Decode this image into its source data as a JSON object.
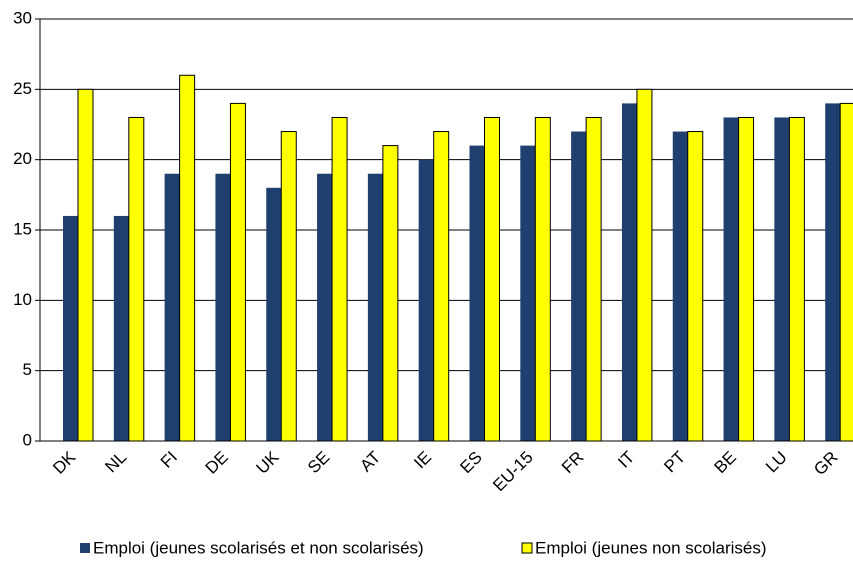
{
  "chart_data": {
    "type": "bar",
    "categories": [
      "DK",
      "NL",
      "FI",
      "DE",
      "UK",
      "SE",
      "AT",
      "IE",
      "ES",
      "EU-15",
      "FR",
      "IT",
      "PT",
      "BE",
      "LU",
      "GR"
    ],
    "series": [
      {
        "name": "Emploi (jeunes scolarisés et non scolarisés)",
        "color": "#1f3f6e",
        "values": [
          16,
          16,
          19,
          19,
          18,
          19,
          19,
          20,
          21,
          21,
          22,
          24,
          22,
          23,
          23,
          24
        ]
      },
      {
        "name": "Emploi (jeunes non scolarisés)",
        "color": "#ffff00",
        "values": [
          25,
          23,
          26,
          24,
          22,
          23,
          21,
          22,
          23,
          23,
          23,
          25,
          22,
          23,
          23,
          24
        ]
      }
    ],
    "ylim": [
      0,
      30
    ],
    "yticks": [
      0,
      5,
      10,
      15,
      20,
      25,
      30
    ],
    "grid": true,
    "legend": "bottom"
  }
}
